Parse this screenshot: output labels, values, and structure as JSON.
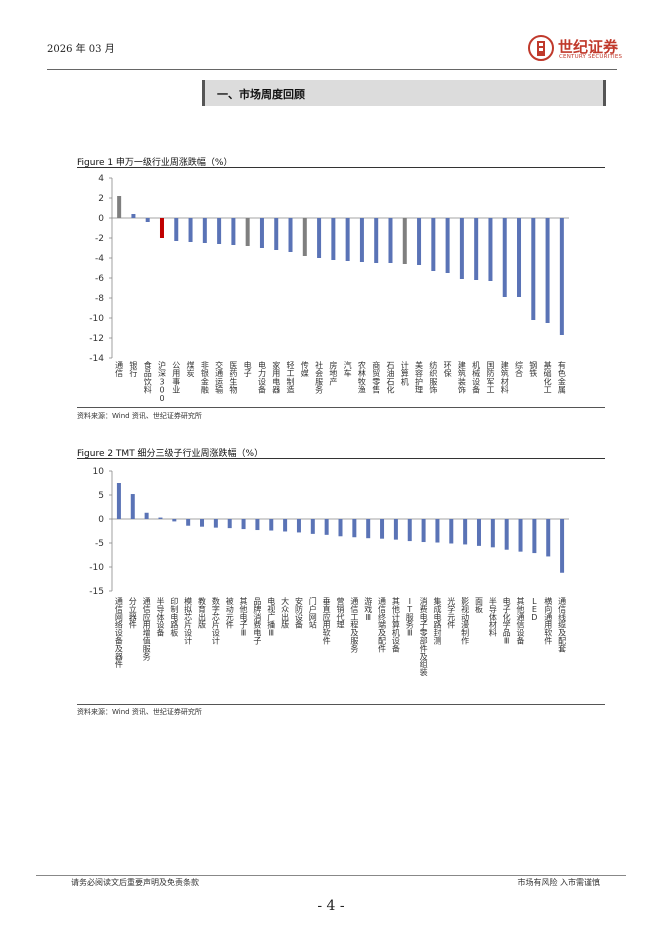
{
  "header": {
    "date": "2026 年 03 月"
  },
  "logo": {
    "name": "世纪证券",
    "subtitle": "CENTURY SECURITIES"
  },
  "section": {
    "title": "一、市场周度回顾"
  },
  "figures": [
    {
      "title": "Figure 1  申万一级行业周涨跌幅（%）",
      "source": "资料来源：Wind 资讯、世纪证券研究所"
    },
    {
      "title": "Figure 2 TMT 细分三级子行业周涨跌幅（%）",
      "source": "资料来源：Wind 资讯、世纪证券研究所"
    }
  ],
  "chart_data": [
    {
      "type": "bar",
      "title": "Figure 1  申万一级行业周涨跌幅（%）",
      "ylim": [
        -14,
        4
      ],
      "yticks": [
        4,
        2,
        0,
        -2,
        -4,
        -6,
        -8,
        -10,
        -12,
        -14
      ],
      "categories": [
        "通信",
        "银行",
        "食品饮料",
        "沪深300",
        "公用事业",
        "煤炭",
        "非银金融",
        "交通运输",
        "医药生物",
        "电子",
        "电力设备",
        "家用电器",
        "轻工制造",
        "传媒",
        "社会服务",
        "房地产",
        "汽车",
        "农林牧渔",
        "商贸零售",
        "石油石化",
        "计算机",
        "美容护理",
        "纺织服饰",
        "环保",
        "建筑装饰",
        "机械设备",
        "国防军工",
        "建筑材料",
        "综合",
        "钢铁",
        "基础化工",
        "有色金属"
      ],
      "values": [
        2.2,
        0.4,
        -0.4,
        -2.0,
        -2.3,
        -2.4,
        -2.5,
        -2.6,
        -2.7,
        -2.8,
        -3.0,
        -3.2,
        -3.4,
        -3.8,
        -4.0,
        -4.2,
        -4.3,
        -4.4,
        -4.5,
        -4.5,
        -4.6,
        -4.7,
        -5.3,
        -5.5,
        -6.1,
        -6.2,
        -6.3,
        -7.9,
        -7.9,
        -10.2,
        -10.5,
        -11.7
      ],
      "highlight": {
        "gray": [
          "通信",
          "电子",
          "传媒",
          "计算机"
        ],
        "red": [
          "沪深300"
        ]
      },
      "colors": {
        "default": "#5a73b6",
        "gray": "#7f7f7f",
        "red": "#c00000"
      }
    },
    {
      "type": "bar",
      "title": "Figure 2 TMT 细分三级子行业周涨跌幅（%）",
      "ylim": [
        -15,
        10
      ],
      "yticks": [
        10,
        5,
        0,
        -5,
        -10,
        -15
      ],
      "categories": [
        "通信网络设备及器件",
        "分立器件",
        "通信应用增值服务",
        "半导体设备",
        "印制电路板",
        "模拟芯片设计",
        "教育出版",
        "数字芯片设计",
        "被动元件",
        "其他电子Ⅲ",
        "品牌消费电子",
        "电视广播Ⅲ",
        "大众出版",
        "安防设备",
        "门户网站",
        "垂直应用软件",
        "营销代理",
        "通信工程及服务",
        "游戏Ⅲ",
        "通信终端及配件",
        "其他计算机设备",
        "IT服务Ⅲ",
        "消费电子零部件及组装",
        "集成电路封测",
        "光学元件",
        "影视动漫制作",
        "面板",
        "半导体材料",
        "电子化学品Ⅲ",
        "其他通信设备",
        "LED",
        "横向通用软件",
        "通信线缆及配套"
      ],
      "values": [
        7.5,
        5.2,
        1.3,
        0.3,
        -0.5,
        -1.4,
        -1.6,
        -1.8,
        -1.9,
        -2.1,
        -2.3,
        -2.4,
        -2.6,
        -2.8,
        -3.1,
        -3.3,
        -3.6,
        -3.8,
        -4.0,
        -4.1,
        -4.3,
        -4.6,
        -4.8,
        -4.9,
        -5.1,
        -5.3,
        -5.6,
        -5.9,
        -6.4,
        -6.8,
        -7.1,
        -7.8,
        -11.2
      ],
      "colors": {
        "default": "#5a73b6"
      }
    }
  ],
  "footer": {
    "disclaimer": "请务必阅读文后重要声明及免责条款",
    "risk": "市场有风险 入市需谨慎",
    "page": "- 4 -"
  }
}
